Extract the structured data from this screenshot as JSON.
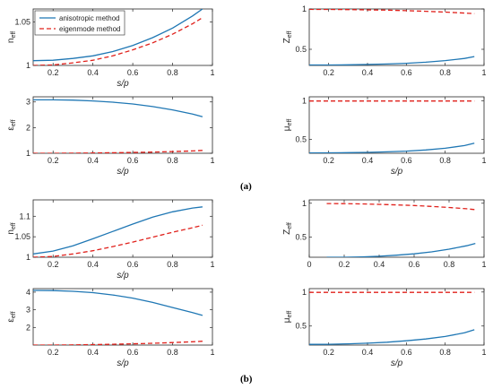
{
  "panel_labels": {
    "a": "(a)",
    "b": "(b)"
  },
  "legend": {
    "solid": "anisotropic method",
    "dashed": "eigenmode method"
  },
  "colors": {
    "solid": "#1f77b4",
    "dashed": "#e0201b"
  },
  "chart_data": [
    {
      "type": "line",
      "panel": "(a)",
      "id": "a-n",
      "xlabel": "s/p",
      "ylabel": "n_eff",
      "ylabel_base": "n",
      "ylabel_sub": "eff",
      "xlim": [
        0.1,
        1
      ],
      "ylim": [
        1,
        1.065
      ],
      "xticks": [
        "0.2",
        "0.4",
        "0.6",
        "0.8",
        "1"
      ],
      "xtick_vals": [
        0.2,
        0.4,
        0.6,
        0.8,
        1
      ],
      "yticks": [
        "1",
        "1.05"
      ],
      "ytick_vals": [
        1,
        1.05
      ],
      "legend_position": "top-left",
      "x": [
        0.1,
        0.2,
        0.3,
        0.4,
        0.5,
        0.6,
        0.7,
        0.8,
        0.9,
        0.95
      ],
      "series": [
        {
          "style": "solid",
          "values": [
            1.0055,
            1.006,
            1.008,
            1.011,
            1.016,
            1.023,
            1.032,
            1.043,
            1.057,
            1.065
          ]
        },
        {
          "style": "dashed",
          "values": [
            1.0,
            1.0005,
            1.003,
            1.006,
            1.011,
            1.018,
            1.026,
            1.036,
            1.048,
            1.055
          ]
        }
      ]
    },
    {
      "type": "line",
      "panel": "(a)",
      "id": "a-z",
      "xlabel": "",
      "ylabel": "Z_eff",
      "ylabel_base": "Z",
      "ylabel_sub": "eff",
      "xlim": [
        0.1,
        1
      ],
      "ylim": [
        0.3,
        1
      ],
      "xticks": [
        "0.2",
        "0.4",
        "0.6",
        "0.8",
        "1"
      ],
      "xtick_vals": [
        0.2,
        0.4,
        0.6,
        0.8,
        1
      ],
      "yticks": [
        "0.5",
        "1"
      ],
      "ytick_vals": [
        0.5,
        1
      ],
      "x": [
        0.1,
        0.2,
        0.3,
        0.4,
        0.5,
        0.6,
        0.7,
        0.8,
        0.9,
        0.95
      ],
      "series": [
        {
          "style": "solid",
          "values": [
            0.305,
            0.306,
            0.308,
            0.312,
            0.318,
            0.327,
            0.34,
            0.36,
            0.387,
            0.41
          ]
        },
        {
          "style": "dashed",
          "values": [
            0.995,
            0.994,
            0.992,
            0.989,
            0.985,
            0.979,
            0.971,
            0.961,
            0.949,
            0.942
          ]
        }
      ]
    },
    {
      "type": "line",
      "panel": "(a)",
      "id": "a-eps",
      "xlabel": "s/p",
      "ylabel": "ε_eff",
      "ylabel_base": "ε",
      "ylabel_sub": "eff",
      "xlim": [
        0.1,
        1
      ],
      "ylim": [
        1,
        3.2
      ],
      "xticks": [
        "0.2",
        "0.4",
        "0.6",
        "0.8",
        "1"
      ],
      "xtick_vals": [
        0.2,
        0.4,
        0.6,
        0.8,
        1
      ],
      "yticks": [
        "1",
        "2",
        "3"
      ],
      "ytick_vals": [
        1,
        2,
        3
      ],
      "x": [
        0.1,
        0.2,
        0.3,
        0.4,
        0.5,
        0.6,
        0.7,
        0.8,
        0.9,
        0.95
      ],
      "series": [
        {
          "style": "solid",
          "values": [
            3.08,
            3.08,
            3.07,
            3.04,
            2.99,
            2.92,
            2.82,
            2.69,
            2.53,
            2.42
          ]
        },
        {
          "style": "dashed",
          "values": [
            1.0,
            1.0,
            1.005,
            1.01,
            1.02,
            1.03,
            1.045,
            1.065,
            1.09,
            1.11
          ]
        }
      ]
    },
    {
      "type": "line",
      "panel": "(a)",
      "id": "a-mu",
      "xlabel": "s/p",
      "ylabel": "μ_eff",
      "ylabel_base": "μ",
      "ylabel_sub": "eff",
      "xlim": [
        0.1,
        1
      ],
      "ylim": [
        0.32,
        1.05
      ],
      "xticks": [
        "0.2",
        "0.4",
        "0.6",
        "0.8",
        "1"
      ],
      "xtick_vals": [
        0.2,
        0.4,
        0.6,
        0.8,
        1
      ],
      "yticks": [
        "0.5",
        "1"
      ],
      "ytick_vals": [
        0.5,
        1
      ],
      "x": [
        0.1,
        0.2,
        0.3,
        0.4,
        0.5,
        0.6,
        0.7,
        0.8,
        0.9,
        0.95
      ],
      "series": [
        {
          "style": "solid",
          "values": [
            0.325,
            0.326,
            0.328,
            0.332,
            0.338,
            0.348,
            0.363,
            0.385,
            0.42,
            0.45
          ]
        },
        {
          "style": "dashed",
          "values": [
            0.995,
            0.995,
            0.995,
            0.995,
            0.995,
            0.995,
            0.995,
            0.995,
            0.995,
            0.995
          ]
        }
      ]
    },
    {
      "type": "line",
      "panel": "(b)",
      "id": "b-n",
      "xlabel": "s/p",
      "ylabel": "n_eff",
      "ylabel_base": "n",
      "ylabel_sub": "eff",
      "xlim": [
        0.1,
        1
      ],
      "ylim": [
        1,
        1.14
      ],
      "xticks": [
        "0.2",
        "0.4",
        "0.6",
        "0.8",
        "1"
      ],
      "xtick_vals": [
        0.2,
        0.4,
        0.6,
        0.8,
        1
      ],
      "yticks": [
        "1",
        "1.05",
        "1.1"
      ],
      "ytick_vals": [
        1,
        1.05,
        1.1
      ],
      "x": [
        0.1,
        0.2,
        0.3,
        0.4,
        0.5,
        0.6,
        0.7,
        0.8,
        0.9,
        0.95
      ],
      "series": [
        {
          "style": "solid",
          "values": [
            1.008,
            1.015,
            1.028,
            1.045,
            1.063,
            1.081,
            1.098,
            1.111,
            1.12,
            1.123
          ]
        },
        {
          "style": "dashed",
          "values": [
            1.0,
            1.002,
            1.008,
            1.016,
            1.026,
            1.037,
            1.049,
            1.061,
            1.072,
            1.078
          ]
        }
      ]
    },
    {
      "type": "line",
      "panel": "(b)",
      "id": "b-z",
      "xlabel": "",
      "ylabel": "Z_eff",
      "ylabel_base": "Z",
      "ylabel_sub": "eff",
      "xlim": [
        0,
        1
      ],
      "ylim": [
        0.2,
        1.05
      ],
      "xticks": [
        "0",
        "0.2",
        "0.4",
        "0.6",
        "0.8",
        "1"
      ],
      "xtick_vals": [
        0,
        0.2,
        0.4,
        0.6,
        0.8,
        1
      ],
      "yticks": [
        "0.5",
        "1"
      ],
      "ytick_vals": [
        0.5,
        1
      ],
      "x": [
        0.1,
        0.2,
        0.3,
        0.4,
        0.5,
        0.6,
        0.7,
        0.8,
        0.9,
        0.95
      ],
      "series": [
        {
          "style": "solid",
          "values": [
            0.2,
            0.2,
            0.205,
            0.215,
            0.23,
            0.25,
            0.28,
            0.32,
            0.37,
            0.405
          ]
        },
        {
          "style": "dashed",
          "values": [
            0.995,
            0.994,
            0.99,
            0.984,
            0.976,
            0.966,
            0.953,
            0.937,
            0.918,
            0.905
          ]
        }
      ]
    },
    {
      "type": "line",
      "panel": "(b)",
      "id": "b-eps",
      "xlabel": "s/p",
      "ylabel": "ε_eff",
      "ylabel_base": "ε",
      "ylabel_sub": "eff",
      "xlim": [
        0.1,
        1
      ],
      "ylim": [
        1,
        4.2
      ],
      "xticks": [
        "0.2",
        "0.4",
        "0.6",
        "0.8",
        "1"
      ],
      "xtick_vals": [
        0.2,
        0.4,
        0.6,
        0.8,
        1
      ],
      "yticks": [
        "2",
        "3",
        "4"
      ],
      "ytick_vals": [
        2,
        3,
        4
      ],
      "x": [
        0.1,
        0.2,
        0.3,
        0.4,
        0.5,
        0.6,
        0.7,
        0.8,
        0.9,
        0.95
      ],
      "series": [
        {
          "style": "solid",
          "values": [
            4.1,
            4.09,
            4.05,
            3.97,
            3.84,
            3.66,
            3.42,
            3.13,
            2.84,
            2.68
          ]
        },
        {
          "style": "dashed",
          "values": [
            1.0,
            1.0,
            1.01,
            1.025,
            1.045,
            1.07,
            1.1,
            1.14,
            1.19,
            1.22
          ]
        }
      ]
    },
    {
      "type": "line",
      "panel": "(b)",
      "id": "b-mu",
      "xlabel": "s/p",
      "ylabel": "μ_eff",
      "ylabel_base": "μ",
      "ylabel_sub": "eff",
      "xlim": [
        0.1,
        1
      ],
      "ylim": [
        0.22,
        1.05
      ],
      "xticks": [
        "0.2",
        "0.4",
        "0.6",
        "0.8",
        "1"
      ],
      "xtick_vals": [
        0.2,
        0.4,
        0.6,
        0.8,
        1
      ],
      "yticks": [
        "0.5",
        "1"
      ],
      "ytick_vals": [
        0.5,
        1
      ],
      "x": [
        0.1,
        0.2,
        0.3,
        0.4,
        0.5,
        0.6,
        0.7,
        0.8,
        0.9,
        0.95
      ],
      "series": [
        {
          "style": "solid",
          "values": [
            0.23,
            0.232,
            0.238,
            0.248,
            0.262,
            0.283,
            0.31,
            0.347,
            0.4,
            0.445
          ]
        },
        {
          "style": "dashed",
          "values": [
            0.995,
            0.995,
            0.995,
            0.995,
            0.995,
            0.995,
            0.995,
            0.995,
            0.995,
            0.995
          ]
        }
      ]
    }
  ]
}
